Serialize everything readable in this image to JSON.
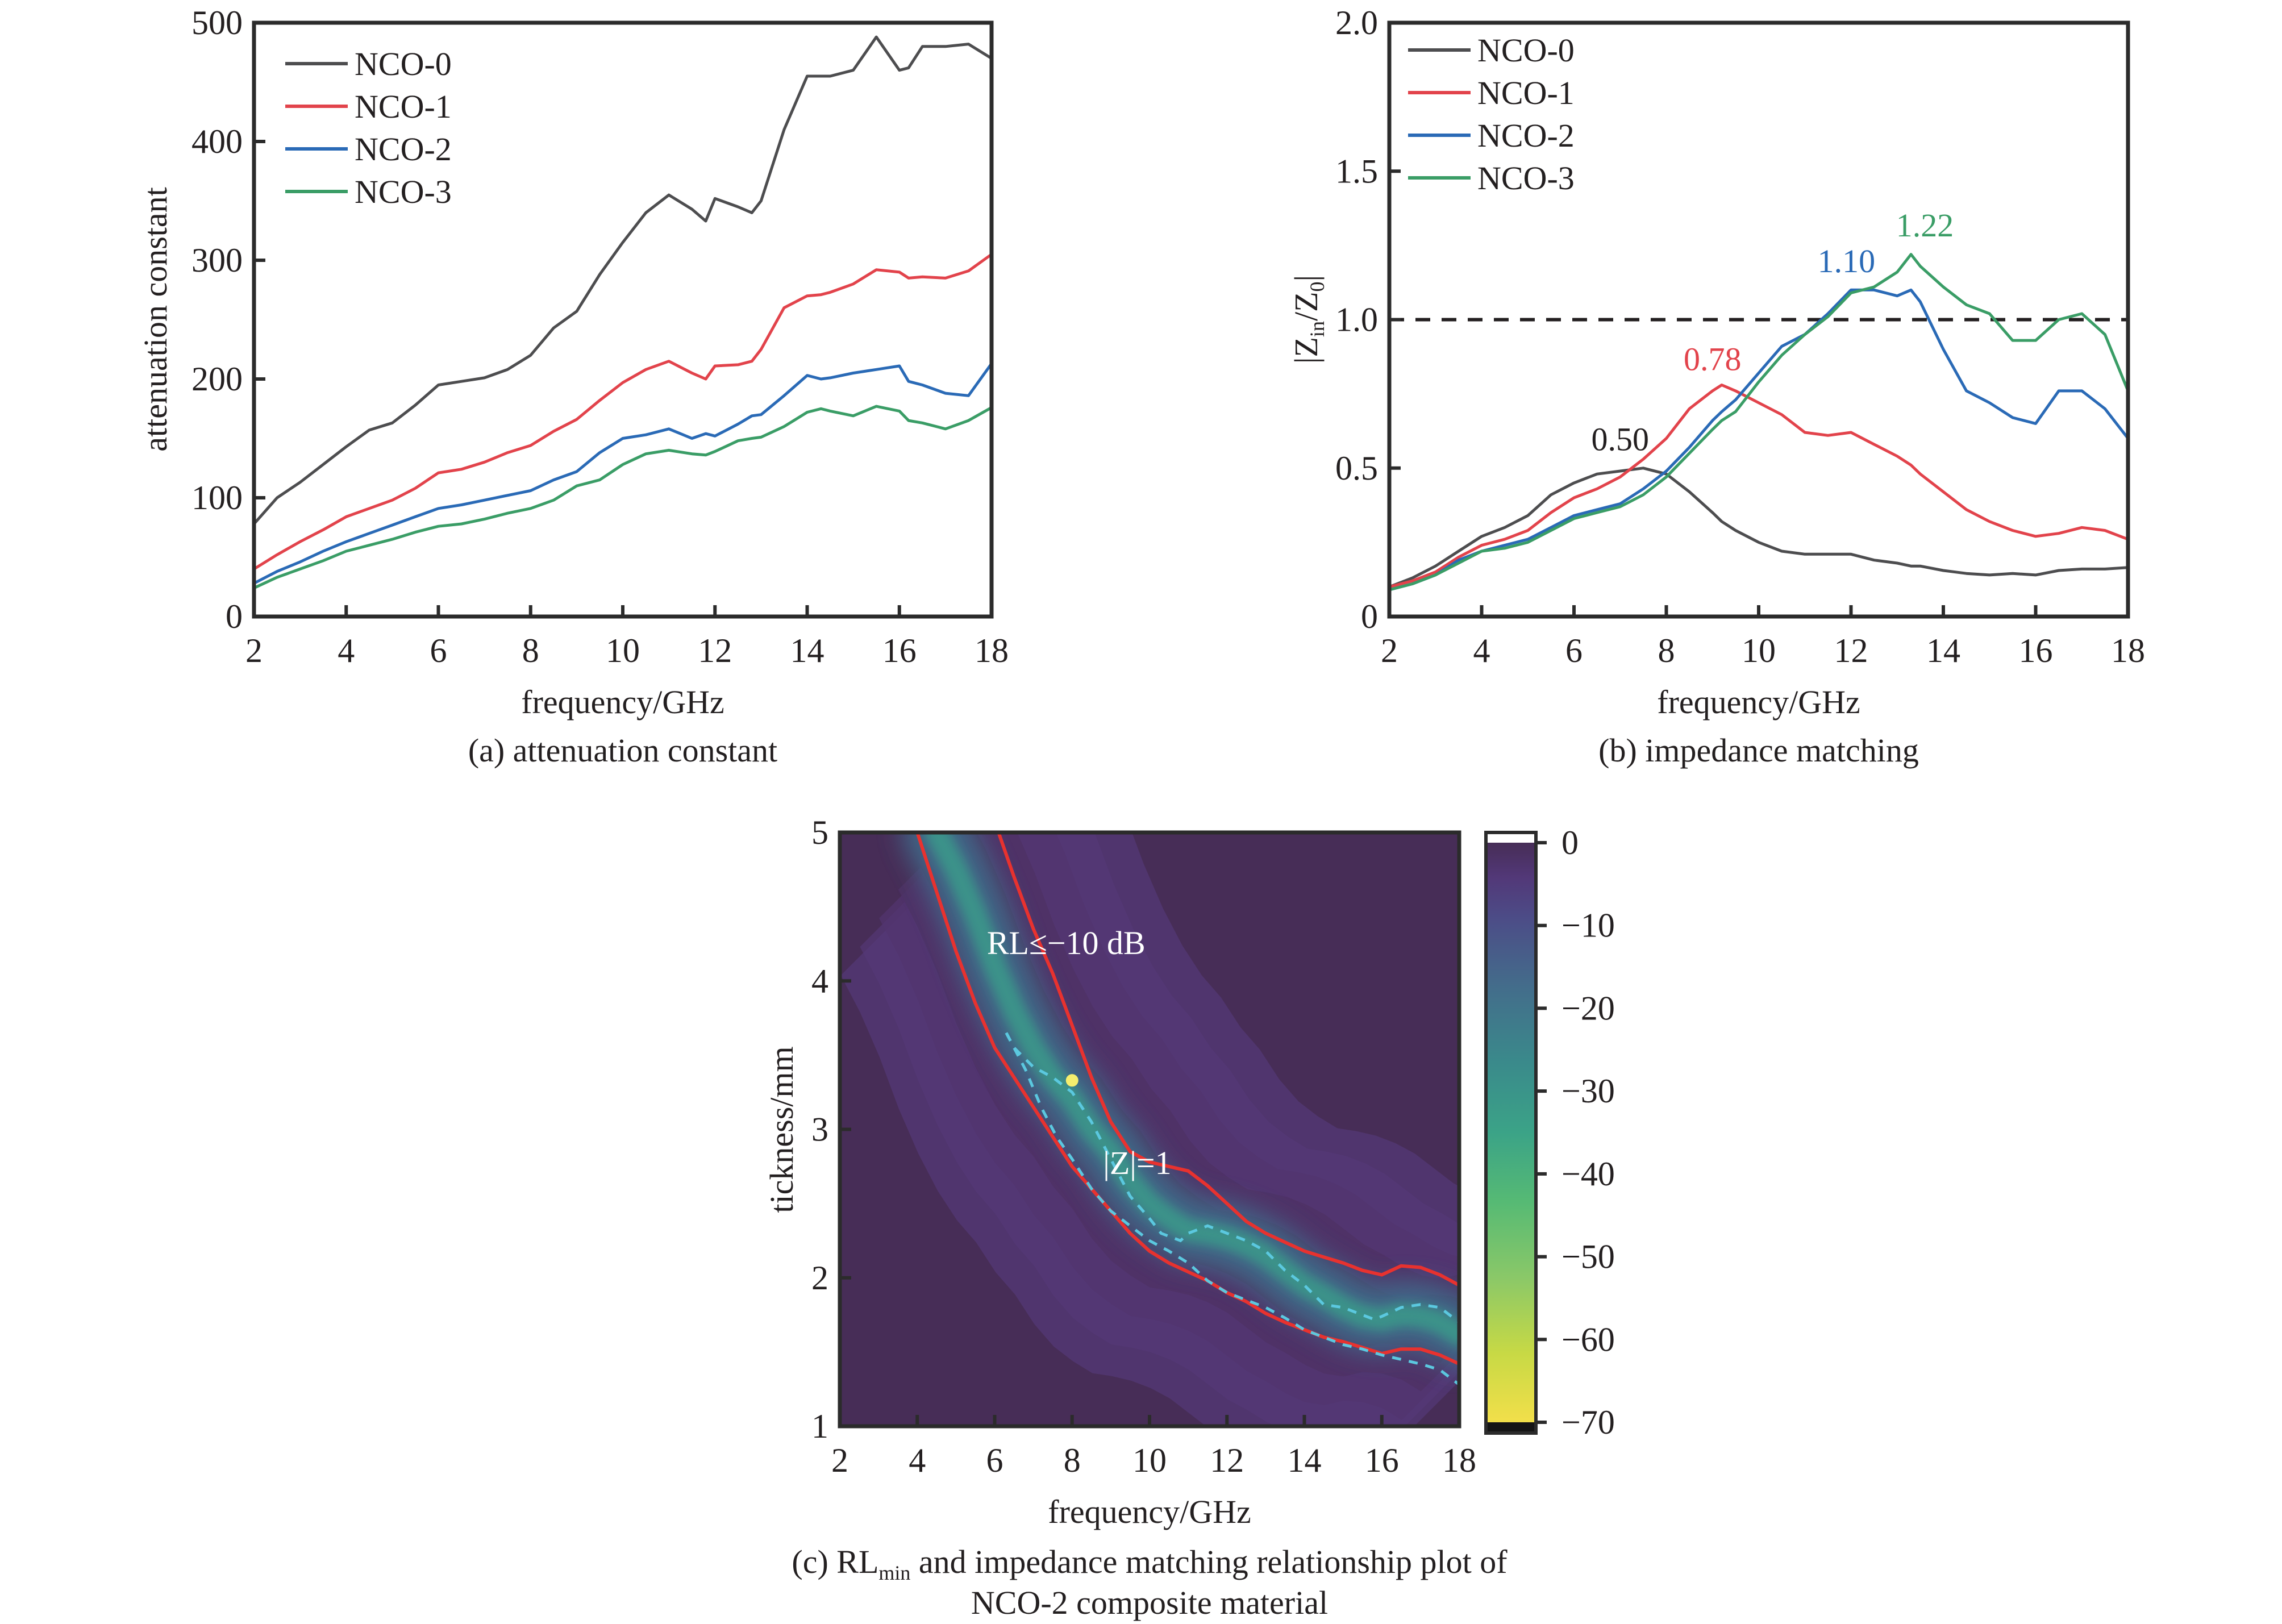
{
  "chart_data": [
    {
      "id": "a",
      "type": "line",
      "caption": "(a) attenuation constant",
      "xlabel": "frequency/GHz",
      "ylabel": "attenuation constant",
      "xlim": [
        2,
        18
      ],
      "ylim": [
        0,
        500
      ],
      "xticks": [
        2,
        4,
        6,
        8,
        10,
        12,
        14,
        16,
        18
      ],
      "yticks": [
        0,
        100,
        200,
        300,
        400,
        500
      ],
      "grid": false,
      "legend_position": "top-left",
      "x": [
        2,
        2.5,
        3,
        3.5,
        4,
        4.5,
        5,
        5.5,
        6,
        6.5,
        7,
        7.5,
        8,
        8.5,
        9,
        9.5,
        10,
        10.5,
        11,
        11.5,
        11.8,
        12,
        12.5,
        12.8,
        13,
        13.5,
        14,
        14.3,
        14.5,
        15,
        15.5,
        16,
        16.2,
        16.5,
        17,
        17.5,
        18
      ],
      "series": [
        {
          "name": "NCO-0",
          "color": "#4d4d4f",
          "values": [
            78,
            100,
            113,
            128,
            143,
            157,
            163,
            178,
            195,
            198,
            201,
            208,
            220,
            243,
            257,
            288,
            315,
            340,
            355,
            343,
            333,
            352,
            345,
            340,
            350,
            410,
            455,
            455,
            455,
            460,
            488,
            460,
            462,
            480,
            480,
            482,
            470
          ]
        },
        {
          "name": "NCO-1",
          "color": "#e2434b",
          "values": [
            40,
            52,
            63,
            73,
            84,
            91,
            98,
            108,
            121,
            124,
            130,
            138,
            144,
            156,
            166,
            182,
            197,
            208,
            215,
            205,
            200,
            211,
            212,
            215,
            225,
            260,
            270,
            271,
            273,
            280,
            292,
            290,
            285,
            286,
            285,
            291,
            305
          ]
        },
        {
          "name": "NCO-2",
          "color": "#2a6ab6",
          "values": [
            28,
            38,
            46,
            55,
            63,
            70,
            77,
            84,
            91,
            94,
            98,
            102,
            106,
            115,
            122,
            138,
            150,
            153,
            158,
            150,
            154,
            152,
            162,
            169,
            170,
            186,
            203,
            200,
            201,
            205,
            208,
            211,
            198,
            195,
            188,
            186,
            213
          ]
        },
        {
          "name": "NCO-3",
          "color": "#3a9d66",
          "values": [
            24,
            33,
            40,
            47,
            55,
            60,
            65,
            71,
            76,
            78,
            82,
            87,
            91,
            98,
            110,
            115,
            128,
            137,
            140,
            137,
            136,
            139,
            148,
            150,
            151,
            160,
            172,
            175,
            173,
            169,
            177,
            173,
            165,
            163,
            158,
            165,
            176
          ]
        }
      ]
    },
    {
      "id": "b",
      "type": "line",
      "caption": "(b) impedance matching",
      "xlabel": "frequency/GHz",
      "ylabel_main": "|Z",
      "ylabel_sub1": "in",
      "ylabel_mid": "/Z",
      "ylabel_sub2": "0",
      "ylabel_end": "|",
      "xlim": [
        2,
        18
      ],
      "ylim": [
        0,
        2.0
      ],
      "xticks": [
        2,
        4,
        6,
        8,
        10,
        12,
        14,
        16,
        18
      ],
      "yticks": [
        0,
        0.5,
        1.0,
        1.5,
        2.0
      ],
      "ytick_labels": [
        "0",
        "0.5",
        "1.0",
        "1.5",
        "2.0"
      ],
      "grid": false,
      "legend_position": "top-left",
      "reference_line": {
        "y": 1.0,
        "style": "dashed",
        "color": "#231f20"
      },
      "x": [
        2,
        2.5,
        3,
        3.5,
        4,
        4.5,
        5,
        5.5,
        6,
        6.5,
        7,
        7.5,
        8,
        8.5,
        9,
        9.2,
        9.5,
        10,
        10.5,
        11,
        11.5,
        12,
        12.5,
        13,
        13.3,
        13.5,
        14,
        14.5,
        15,
        15.5,
        16,
        16.5,
        17,
        17.5,
        18
      ],
      "series": [
        {
          "name": "NCO-0",
          "color": "#4d4d4f",
          "values": [
            0.1,
            0.13,
            0.17,
            0.22,
            0.27,
            0.3,
            0.34,
            0.41,
            0.45,
            0.48,
            0.49,
            0.5,
            0.48,
            0.42,
            0.35,
            0.32,
            0.29,
            0.25,
            0.22,
            0.21,
            0.21,
            0.21,
            0.19,
            0.18,
            0.17,
            0.17,
            0.155,
            0.145,
            0.14,
            0.145,
            0.14,
            0.155,
            0.16,
            0.16,
            0.165
          ]
        },
        {
          "name": "NCO-1",
          "color": "#e2434b",
          "values": [
            0.1,
            0.12,
            0.15,
            0.2,
            0.24,
            0.26,
            0.29,
            0.35,
            0.4,
            0.43,
            0.47,
            0.53,
            0.6,
            0.7,
            0.76,
            0.78,
            0.76,
            0.72,
            0.68,
            0.62,
            0.61,
            0.62,
            0.58,
            0.54,
            0.51,
            0.48,
            0.42,
            0.36,
            0.32,
            0.29,
            0.27,
            0.28,
            0.3,
            0.29,
            0.26
          ]
        },
        {
          "name": "NCO-2",
          "color": "#2a6ab6",
          "values": [
            0.09,
            0.11,
            0.14,
            0.19,
            0.22,
            0.24,
            0.26,
            0.3,
            0.34,
            0.36,
            0.38,
            0.43,
            0.49,
            0.57,
            0.66,
            0.69,
            0.73,
            0.82,
            0.91,
            0.95,
            1.02,
            1.1,
            1.1,
            1.08,
            1.1,
            1.06,
            0.9,
            0.76,
            0.72,
            0.67,
            0.65,
            0.76,
            0.76,
            0.7,
            0.6
          ]
        },
        {
          "name": "NCO-3",
          "color": "#3a9d66",
          "values": [
            0.09,
            0.11,
            0.14,
            0.18,
            0.22,
            0.23,
            0.25,
            0.29,
            0.33,
            0.35,
            0.37,
            0.41,
            0.47,
            0.55,
            0.63,
            0.66,
            0.69,
            0.79,
            0.88,
            0.95,
            1.01,
            1.09,
            1.11,
            1.16,
            1.22,
            1.18,
            1.11,
            1.05,
            1.02,
            0.93,
            0.93,
            1.0,
            1.02,
            0.95,
            0.76
          ]
        }
      ],
      "annotations": [
        {
          "text": "0.50",
          "x": 7.0,
          "y": 0.56,
          "color": "#231f20"
        },
        {
          "text": "0.78",
          "x": 9.0,
          "y": 0.83,
          "color": "#e2434b"
        },
        {
          "text": "1.10",
          "x": 11.9,
          "y": 1.16,
          "color": "#2a6ab6"
        },
        {
          "text": "1.22",
          "x": 13.6,
          "y": 1.28,
          "color": "#3a9d66"
        }
      ]
    },
    {
      "id": "c",
      "type": "heatmap",
      "caption_prefix": "(c) RL",
      "caption_sub": "min",
      "caption_rest": " and impedance matching relationship plot of",
      "caption_line2": "NCO-2 composite material",
      "xlabel": "frequency/GHz",
      "ylabel": "tickness/mm",
      "xlim": [
        2,
        18
      ],
      "ylim": [
        1,
        5
      ],
      "xticks": [
        2,
        4,
        6,
        8,
        10,
        12,
        14,
        16,
        18
      ],
      "yticks": [
        1,
        2,
        3,
        4,
        5
      ],
      "colorbar": {
        "min": -70,
        "max": 0,
        "ticks": [
          0,
          -10,
          -20,
          -30,
          -40,
          -50,
          -60,
          -70
        ],
        "tick_labels": [
          "0",
          "−10",
          "−20",
          "−30",
          "−40",
          "−50",
          "−60",
          "−70"
        ],
        "colormap": "viridis"
      },
      "optimum_ridge": {
        "x": [
          4.5,
          5.0,
          5.5,
          6.0,
          6.5,
          7.0,
          7.5,
          8.0,
          8.5,
          9.0,
          9.5,
          10.0,
          10.5,
          11.0,
          11.5,
          12.0,
          12.5,
          13.0,
          13.5,
          14.0,
          14.5,
          15.0,
          15.5,
          16.0,
          16.5,
          17.0,
          17.5,
          18.0
        ],
        "y": [
          5.0,
          4.75,
          4.45,
          4.1,
          3.8,
          3.55,
          3.35,
          3.2,
          3.0,
          2.85,
          2.65,
          2.5,
          2.4,
          2.32,
          2.3,
          2.27,
          2.22,
          2.15,
          2.05,
          1.95,
          1.88,
          1.8,
          1.74,
          1.72,
          1.75,
          1.74,
          1.7,
          1.62
        ]
      },
      "contour_rl_minus10_upper": {
        "x": [
          6.1,
          6.5,
          7.0,
          7.5,
          8.0,
          8.5,
          9.0,
          9.5,
          10.0,
          10.5,
          11.0,
          11.5,
          12.0,
          12.5,
          13.0,
          13.5,
          14.0,
          14.5,
          15.0,
          15.5,
          16.0,
          16.5,
          17.0,
          17.5,
          18.0
        ],
        "y": [
          5.0,
          4.7,
          4.35,
          4.05,
          3.7,
          3.35,
          3.05,
          2.85,
          2.78,
          2.75,
          2.72,
          2.62,
          2.5,
          2.38,
          2.3,
          2.24,
          2.18,
          2.14,
          2.1,
          2.05,
          2.02,
          2.08,
          2.07,
          2.02,
          1.95
        ]
      },
      "contour_rl_minus10_lower": {
        "x": [
          4.0,
          4.5,
          5.0,
          5.5,
          6.0,
          6.5,
          7.0,
          7.5,
          8.0,
          8.5,
          9.0,
          9.5,
          10.0,
          10.5,
          11.0,
          11.5,
          12.0,
          12.5,
          13.0,
          13.5,
          14.0,
          14.5,
          15.0,
          15.5,
          16.0,
          16.5,
          17.0,
          17.5,
          18.0
        ],
        "y": [
          5.0,
          4.6,
          4.2,
          3.85,
          3.55,
          3.35,
          3.15,
          2.95,
          2.75,
          2.6,
          2.45,
          2.3,
          2.18,
          2.1,
          2.04,
          1.98,
          1.9,
          1.84,
          1.76,
          1.7,
          1.65,
          1.6,
          1.57,
          1.53,
          1.49,
          1.52,
          1.52,
          1.48,
          1.42
        ]
      },
      "impedance_contour_z1": {
        "x": [
          6.3,
          6.5,
          7.0,
          7.5,
          8.0,
          8.5,
          9.0,
          9.5,
          10.0,
          10.3,
          10.5,
          10.8,
          11.0,
          11.5,
          12.0,
          12.5,
          13.0,
          13.5,
          14.0,
          14.5,
          15.0,
          15.5,
          15.8,
          16.0,
          16.5,
          17.0,
          17.5,
          18.0
        ],
        "y": [
          3.65,
          3.55,
          3.42,
          3.35,
          3.25,
          3.05,
          2.8,
          2.55,
          2.4,
          2.3,
          2.28,
          2.25,
          2.3,
          2.35,
          2.3,
          2.25,
          2.18,
          2.05,
          1.95,
          1.82,
          1.8,
          1.75,
          1.72,
          1.74,
          1.8,
          1.82,
          1.8,
          1.7
        ]
      },
      "impedance_contour_z1_lower": {
        "x": [
          6.3,
          6.8,
          7.2,
          7.6,
          8.0,
          8.5,
          9.0,
          9.5,
          10.0,
          10.5,
          11.0,
          11.5,
          12.0,
          12.5,
          13.0,
          13.5,
          14.0,
          14.5,
          15.0,
          15.5,
          16.0,
          16.5,
          17.0,
          17.5,
          18.0
        ],
        "y": [
          3.65,
          3.4,
          3.15,
          2.95,
          2.8,
          2.6,
          2.45,
          2.35,
          2.25,
          2.18,
          2.1,
          1.98,
          1.9,
          1.85,
          1.8,
          1.73,
          1.65,
          1.6,
          1.55,
          1.52,
          1.48,
          1.45,
          1.42,
          1.38,
          1.28
        ]
      },
      "rl_min_point": {
        "x": 8.0,
        "y": 3.33,
        "color": "#f5ee6e"
      },
      "annotations": [
        {
          "text": "RL≤−10 dB",
          "x": 5.8,
          "y": 4.18
        },
        {
          "text": "|Z|=1",
          "x": 8.8,
          "y": 2.7
        }
      ],
      "contour_color": "#e8322f",
      "impedance_color": "#5bc8df"
    }
  ]
}
